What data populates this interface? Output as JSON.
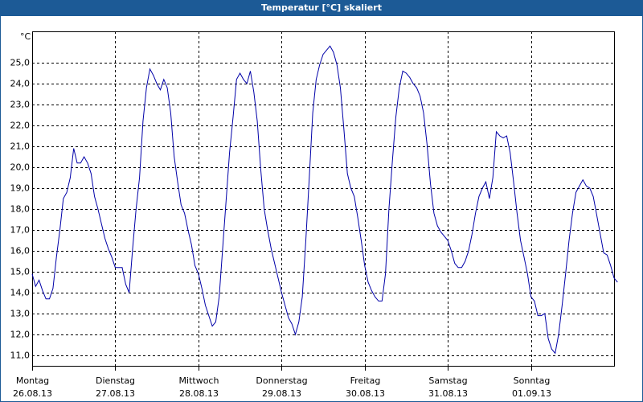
{
  "chart_data": {
    "type": "line",
    "title": "Temperatur [°C] skaliert",
    "y_label": "°C",
    "color": "#0000a8",
    "grid": true,
    "xlim": [
      0,
      168
    ],
    "xticks": [
      {
        "value": 0,
        "label": "Montag",
        "date": "26.08.13"
      },
      {
        "value": 24,
        "label": "Dienstag",
        "date": "27.08.13"
      },
      {
        "value": 48,
        "label": "Mittwoch",
        "date": "28.08.13"
      },
      {
        "value": 72,
        "label": "Donnerstag",
        "date": "29.08.13"
      },
      {
        "value": 96,
        "label": "Freitag",
        "date": "30.08.13"
      },
      {
        "value": 120,
        "label": "Samstag",
        "date": "31.08.13"
      },
      {
        "value": 144,
        "label": "Sonntag",
        "date": "01.09.13"
      }
    ],
    "ylim": [
      10.5,
      26.5
    ],
    "yticks": [
      {
        "value": 11,
        "label": "11,0"
      },
      {
        "value": 12,
        "label": "12,0"
      },
      {
        "value": 13,
        "label": "13,0"
      },
      {
        "value": 14,
        "label": "14,0"
      },
      {
        "value": 15,
        "label": "15,0"
      },
      {
        "value": 16,
        "label": "16,0"
      },
      {
        "value": 17,
        "label": "17,0"
      },
      {
        "value": 18,
        "label": "18,0"
      },
      {
        "value": 19,
        "label": "19,0"
      },
      {
        "value": 20,
        "label": "20,0"
      },
      {
        "value": 21,
        "label": "21,0"
      },
      {
        "value": 22,
        "label": "22,0"
      },
      {
        "value": 23,
        "label": "23,0"
      },
      {
        "value": 24,
        "label": "24,0"
      },
      {
        "value": 25,
        "label": "25,0"
      }
    ],
    "x": [
      0,
      1,
      2,
      3,
      4,
      5,
      6,
      7,
      8,
      9,
      10,
      11,
      12,
      13,
      14,
      15,
      16,
      17,
      18,
      19,
      20,
      21,
      22,
      23,
      24,
      25,
      26,
      27,
      28,
      29,
      30,
      31,
      32,
      33,
      34,
      35,
      36,
      37,
      38,
      39,
      40,
      41,
      42,
      43,
      44,
      45,
      46,
      47,
      48,
      49,
      50,
      51,
      52,
      53,
      54,
      55,
      56,
      57,
      58,
      59,
      60,
      61,
      62,
      63,
      64,
      65,
      66,
      67,
      68,
      69,
      70,
      71,
      72,
      73,
      74,
      75,
      76,
      77,
      78,
      79,
      80,
      81,
      82,
      83,
      84,
      85,
      86,
      87,
      88,
      89,
      90,
      91,
      92,
      93,
      94,
      95,
      96,
      97,
      98,
      99,
      100,
      101,
      102,
      103,
      104,
      105,
      106,
      107,
      108,
      109,
      110,
      111,
      112,
      113,
      114,
      115,
      116,
      117,
      118,
      119,
      120,
      121,
      122,
      123,
      124,
      125,
      126,
      127,
      128,
      129,
      130,
      131,
      132,
      133,
      134,
      135,
      136,
      137,
      138,
      139,
      140,
      141,
      142,
      143,
      144,
      145,
      146,
      147,
      148,
      149,
      150,
      151,
      152,
      153,
      154,
      155,
      156,
      157,
      158,
      159,
      160,
      161,
      162,
      163,
      164,
      165,
      166,
      167,
      168,
      169
    ],
    "values": [
      14.9,
      14.3,
      14.6,
      14.1,
      13.7,
      13.7,
      14.2,
      15.7,
      17.0,
      18.5,
      18.8,
      19.5,
      20.9,
      20.2,
      20.2,
      20.5,
      20.2,
      19.7,
      18.6,
      18.0,
      17.3,
      16.6,
      16.1,
      15.7,
      15.2,
      15.2,
      15.2,
      14.4,
      14.0,
      16.1,
      18.0,
      19.5,
      22.2,
      23.8,
      24.7,
      24.4,
      24.0,
      23.7,
      24.2,
      23.8,
      22.6,
      20.5,
      19.3,
      18.2,
      17.8,
      17.0,
      16.3,
      15.3,
      14.9,
      14.2,
      13.4,
      12.9,
      12.4,
      12.6,
      13.8,
      16.1,
      18.4,
      20.7,
      22.4,
      24.2,
      24.5,
      24.2,
      24.0,
      24.6,
      23.6,
      22.2,
      19.9,
      18.0,
      17.0,
      16.1,
      15.4,
      14.7,
      14.0,
      13.4,
      12.8,
      12.5,
      12.0,
      12.6,
      13.8,
      16.5,
      19.5,
      22.6,
      24.2,
      24.9,
      25.4,
      25.6,
      25.8,
      25.5,
      24.9,
      23.8,
      21.8,
      19.7,
      19.0,
      18.6,
      17.6,
      16.5,
      15.3,
      14.5,
      14.1,
      13.8,
      13.6,
      13.6,
      14.9,
      18.0,
      20.3,
      22.4,
      23.8,
      24.6,
      24.5,
      24.3,
      24.0,
      23.8,
      23.4,
      22.6,
      21.1,
      19.2,
      17.8,
      17.2,
      16.9,
      16.7,
      16.5,
      16.0,
      15.4,
      15.2,
      15.2,
      15.5,
      16.0,
      16.8,
      17.8,
      18.6,
      19.0,
      19.3,
      18.5,
      19.5,
      21.7,
      21.5,
      21.4,
      21.5,
      20.7,
      19.3,
      17.8,
      16.5,
      15.7,
      14.9,
      13.8,
      13.6,
      12.9,
      12.9,
      13.0,
      11.8,
      11.3,
      11.1,
      12.0,
      13.4,
      14.9,
      16.5,
      17.8,
      18.8,
      19.1,
      19.4,
      19.1,
      19.0,
      18.6,
      17.7,
      16.8,
      15.9,
      15.8,
      15.3,
      14.7,
      14.5
    ]
  }
}
